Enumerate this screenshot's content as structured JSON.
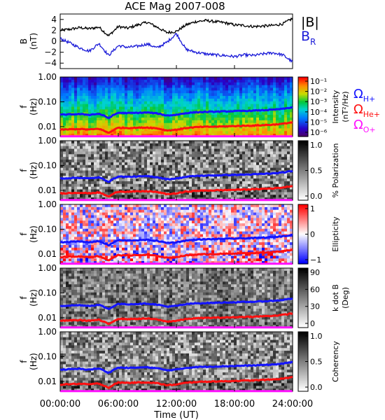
{
  "title": "ACE Mag 2007-008",
  "colors": {
    "btotal": "#000000",
    "br": "#1a1ad8",
    "h_plus": "#1414ff",
    "he_plus": "#ff1010",
    "o_plus": "#ff10ff"
  },
  "x_axis": {
    "label": "Time (UT)",
    "ticks": [
      "00:00:00",
      "06:00:00",
      "12:00:00",
      "18:00:00",
      "24:00:00"
    ],
    "range_hours": [
      0,
      24
    ]
  },
  "legend_top": {
    "btotal": "|B|",
    "br_main": "B",
    "br_sub": "R"
  },
  "legend_ions": [
    {
      "main": "Ω",
      "sub": "H+",
      "color": "#1414ff"
    },
    {
      "main": "Ω",
      "sub": "He+",
      "color": "#ff1010"
    },
    {
      "main": "Ω",
      "sub": "O+",
      "color": "#ff10ff"
    }
  ],
  "panel1": {
    "ylabel": "B",
    "yunit": "(nT)",
    "yticks": [
      "4",
      "2",
      "0",
      "−2",
      "−4"
    ]
  },
  "freq_axis": {
    "label": "f",
    "unit": "(Hz)",
    "ticks": [
      "1.00",
      "0.10",
      "0.01"
    ]
  },
  "colorbars": [
    {
      "id": "intensity",
      "label1": "Intensity",
      "label2": "(nT²/Hz)",
      "ticks": [
        "10⁻¹",
        "10⁻²",
        "10⁻³",
        "10⁻⁴",
        "10⁻⁵",
        "10⁻⁶"
      ]
    },
    {
      "id": "polarization",
      "label1": "% Polarization",
      "label2": "",
      "ticks": [
        "1.0",
        "0.5",
        "0.0"
      ]
    },
    {
      "id": "ellipticity",
      "label1": "Ellipticity",
      "label2": "",
      "ticks": [
        "1",
        "0",
        "−1"
      ]
    },
    {
      "id": "kdotb",
      "label1": "k dot B",
      "label2": "(Deg)",
      "ticks": [
        "90",
        "60",
        "30",
        "0"
      ]
    },
    {
      "id": "coherency",
      "label1": "Coherency",
      "label2": "",
      "ticks": [
        "1.0",
        "0.5",
        "0.0"
      ]
    }
  ],
  "chart_data": {
    "type": "line",
    "title": "ACE Mag 2007-008",
    "xlabel": "Time (UT)",
    "panels": [
      {
        "ylabel": "B (nT)",
        "ylim": [
          -5,
          5
        ],
        "x_hours": [
          0,
          1,
          2,
          3,
          4,
          5,
          6,
          7,
          8,
          9,
          10,
          11,
          12,
          13,
          14,
          15,
          16,
          17,
          18,
          19,
          20,
          21,
          22,
          23,
          24
        ],
        "series": [
          {
            "name": "|B|",
            "values": [
              2.0,
              2.2,
              2.5,
              2.3,
              2.6,
              1.0,
              2.7,
              2.4,
              3.0,
              3.5,
              2.6,
              1.6,
              1.8,
              3.0,
              3.6,
              3.8,
              3.6,
              3.4,
              3.0,
              2.9,
              2.7,
              2.8,
              2.9,
              3.2,
              4.2
            ]
          },
          {
            "name": "B_R",
            "values": [
              0.5,
              -0.3,
              -1.2,
              -1.8,
              -0.4,
              -2.6,
              -0.8,
              -1.1,
              -0.9,
              -0.5,
              -1.2,
              -0.2,
              1.4,
              -1.5,
              -2.0,
              -2.3,
              -2.5,
              -2.6,
              -2.8,
              -2.5,
              -2.6,
              -2.3,
              -2.1,
              -2.5,
              -3.8
            ]
          }
        ]
      },
      {
        "ylabel": "f (Hz)",
        "yscale": "log",
        "ylim": [
          0.004,
          1.0
        ],
        "x_hours": [
          0,
          1,
          2,
          3,
          4,
          5,
          6,
          7,
          8,
          9,
          10,
          11,
          12,
          13,
          14,
          15,
          16,
          17,
          18,
          19,
          20,
          21,
          22,
          23,
          24
        ],
        "series": [
          {
            "name": "Ω_H+",
            "values": [
              0.03,
              0.031,
              0.032,
              0.03,
              0.033,
              0.022,
              0.036,
              0.035,
              0.036,
              0.037,
              0.034,
              0.028,
              0.03,
              0.035,
              0.038,
              0.039,
              0.04,
              0.041,
              0.042,
              0.043,
              0.044,
              0.046,
              0.048,
              0.052,
              0.06
            ]
          },
          {
            "name": "Ω_He+",
            "values": [
              0.0075,
              0.0078,
              0.008,
              0.0076,
              0.0082,
              0.0055,
              0.009,
              0.0088,
              0.009,
              0.0092,
              0.0085,
              0.007,
              0.0075,
              0.0088,
              0.0095,
              0.0098,
              0.01,
              0.0102,
              0.0105,
              0.0108,
              0.011,
              0.0115,
              0.012,
              0.013,
              0.015
            ]
          },
          {
            "name": "Ω_O+",
            "values": [
              0.0019,
              0.0019,
              0.002,
              0.0019,
              0.002,
              0.0014,
              0.0022,
              0.0022,
              0.0022,
              0.0023,
              0.0021,
              0.0018,
              0.0019,
              0.0022,
              0.0024,
              0.0024,
              0.0025,
              0.0026,
              0.0026,
              0.0027,
              0.0028,
              0.0029,
              0.003,
              0.0033,
              0.0038
            ]
          }
        ]
      }
    ]
  }
}
